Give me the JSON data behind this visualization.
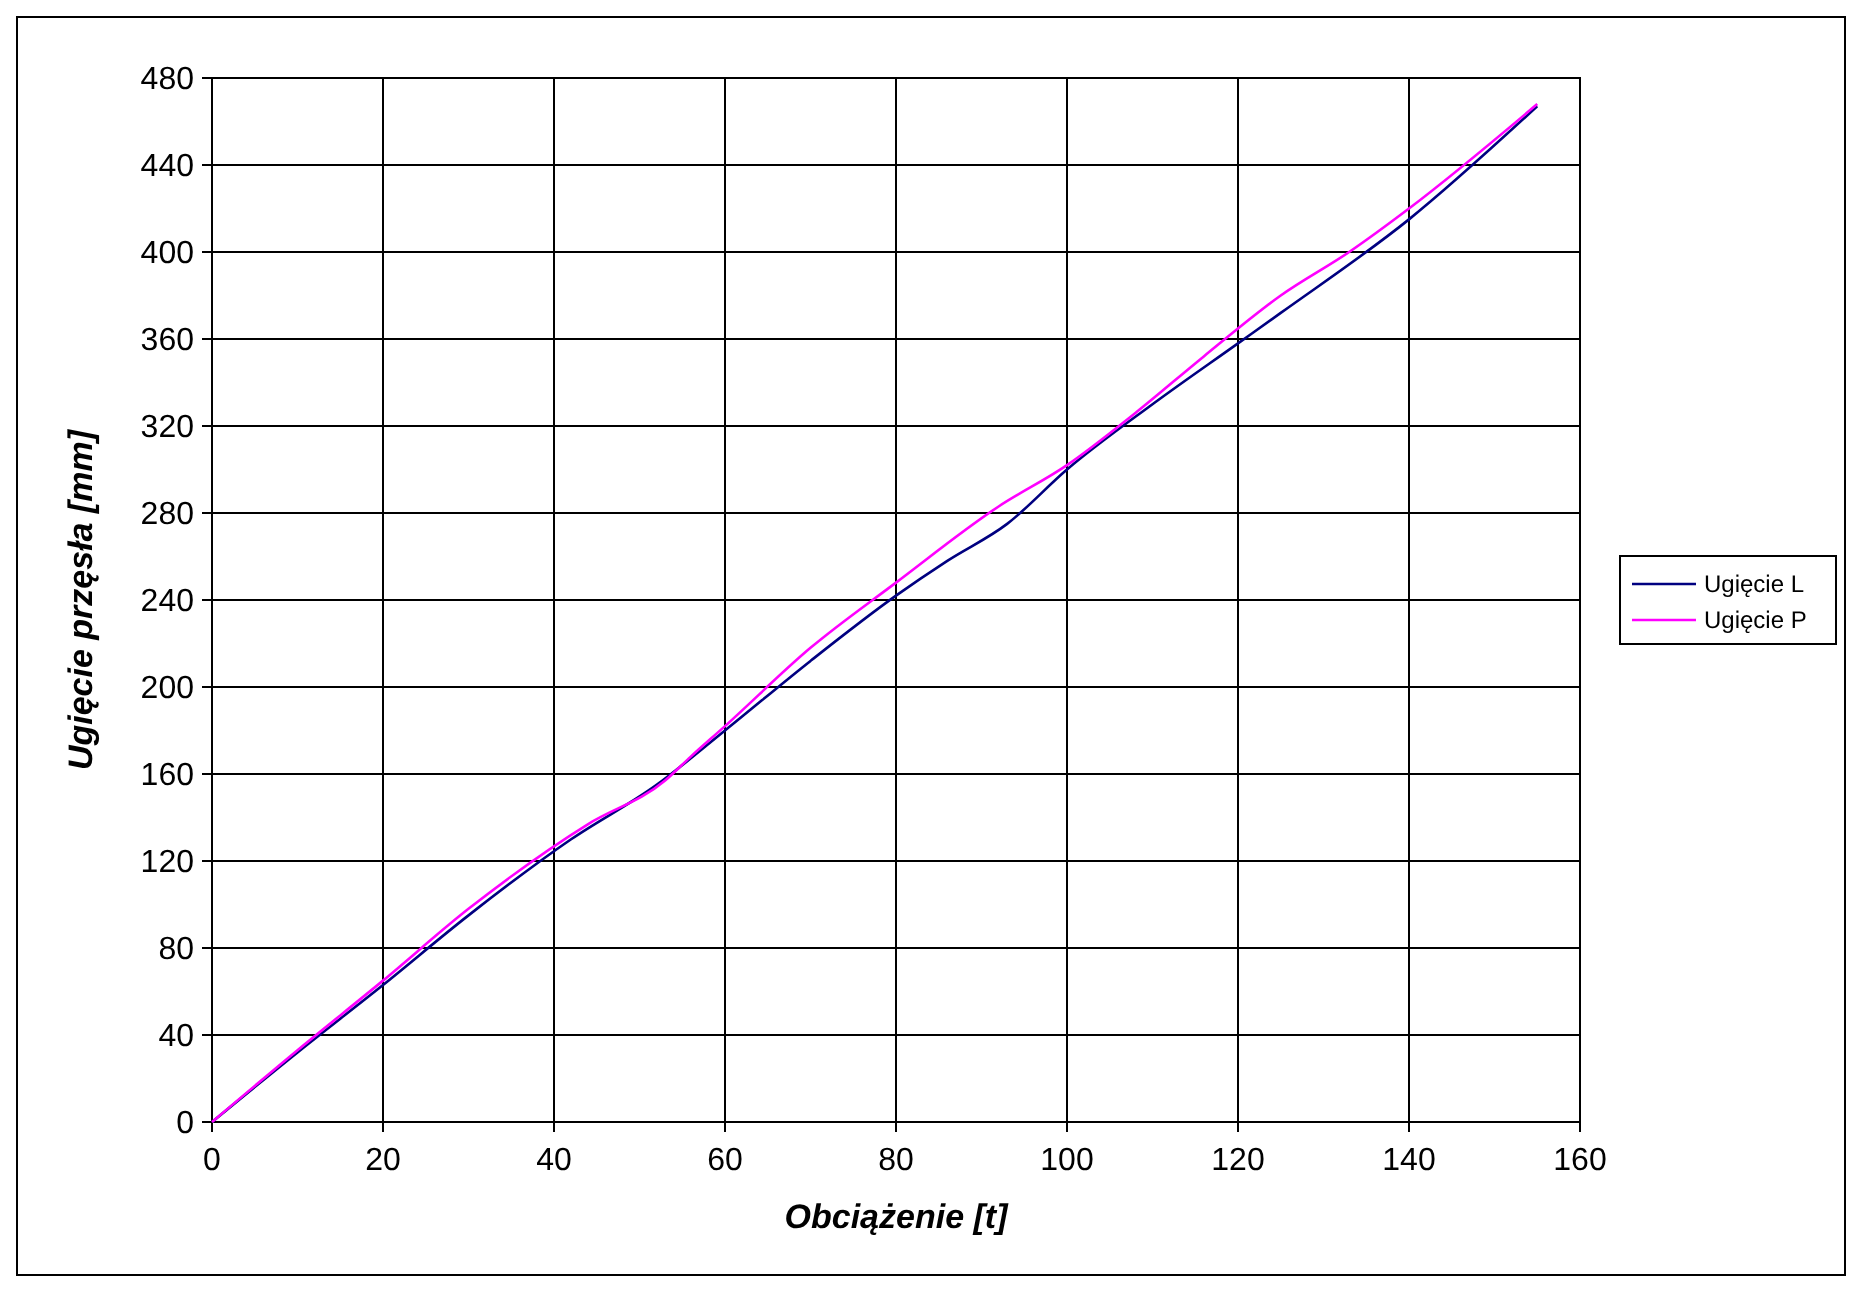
{
  "chart_data": {
    "type": "line",
    "xlabel": "Obciążenie [t]",
    "ylabel": "Ugięcie przęsła [mm]",
    "xlim": [
      0,
      160
    ],
    "xticks": [
      0,
      20,
      40,
      60,
      80,
      100,
      120,
      140,
      160
    ],
    "ylim": [
      0,
      480
    ],
    "yticks": [
      0,
      40,
      80,
      120,
      160,
      200,
      240,
      280,
      320,
      360,
      400,
      440,
      480
    ],
    "grid": true,
    "legend": "right",
    "marker": "none",
    "line_style": "solid",
    "series": [
      {
        "name": "Ugięcie L",
        "color": "#000080",
        "x": [
          0,
          10,
          20,
          30,
          42,
          52,
          60,
          70,
          80,
          86,
          93,
          100,
          110,
          120,
          125,
          140,
          155
        ],
        "values": [
          0,
          32,
          63,
          95,
          130,
          155,
          180,
          212,
          242,
          258,
          275,
          300,
          330,
          358,
          372,
          415,
          467
        ]
      },
      {
        "name": "Ugięcie P",
        "color": "#ff00ff",
        "x": [
          0,
          10,
          20,
          30,
          44,
          53,
          56,
          60,
          70,
          80,
          92,
          100,
          108,
          116,
          125,
          133,
          140,
          155
        ],
        "values": [
          0,
          33,
          65,
          98,
          137,
          157,
          168,
          182,
          218,
          248,
          283,
          302,
          326,
          352,
          380,
          400,
          420,
          468
        ]
      }
    ]
  }
}
